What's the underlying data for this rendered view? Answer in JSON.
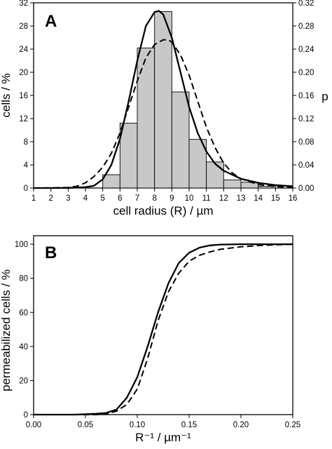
{
  "chart_data": [
    {
      "type": "bar",
      "panel_label": "A",
      "xlabel": "cell radius (R) / µm",
      "ylabel": "cells / %",
      "y2label": "p",
      "xlim": [
        1,
        16
      ],
      "ylim": [
        0,
        32
      ],
      "y2lim": [
        0,
        0.32
      ],
      "xticks": [
        1,
        2,
        3,
        4,
        5,
        6,
        7,
        8,
        9,
        10,
        11,
        12,
        13,
        14,
        15,
        16
      ],
      "yticks": [
        0,
        4,
        8,
        12,
        16,
        20,
        24,
        28,
        32
      ],
      "y2ticks": [
        "0.00",
        "0.04",
        "0.08",
        "0.12",
        "0.16",
        "0.20",
        "0.24",
        "0.28",
        "0.32"
      ],
      "bar_color": "#c8c8c8",
      "bins": [
        {
          "x0": 5,
          "x1": 6,
          "value": 2.3
        },
        {
          "x0": 6,
          "x1": 7,
          "value": 11.2
        },
        {
          "x0": 7,
          "x1": 8,
          "value": 24.2
        },
        {
          "x0": 8,
          "x1": 9,
          "value": 30.5
        },
        {
          "x0": 9,
          "x1": 10,
          "value": 16.6
        },
        {
          "x0": 10,
          "x1": 11,
          "value": 8.4
        },
        {
          "x0": 11,
          "x1": 12,
          "value": 4.5
        },
        {
          "x0": 12,
          "x1": 13,
          "value": 1.4
        },
        {
          "x0": 13,
          "x1": 14,
          "value": 1.0
        },
        {
          "x0": 14,
          "x1": 15,
          "value": 0.3
        }
      ],
      "series": [
        {
          "style": "solid",
          "x": [
            1,
            2,
            3,
            4,
            4.5,
            5,
            5.5,
            6,
            6.5,
            7,
            7.5,
            8,
            8.25,
            8.5,
            9,
            9.5,
            10,
            10.5,
            11,
            11.5,
            12,
            13,
            14,
            15,
            16
          ],
          "y": [
            0,
            0,
            0.02,
            0.15,
            0.4,
            1.5,
            4.0,
            8.5,
            15.0,
            22.0,
            28.0,
            30.4,
            30.6,
            30.0,
            26.0,
            20.0,
            14.0,
            9.5,
            6.3,
            4.2,
            3.0,
            1.6,
            0.9,
            0.5,
            0.3
          ]
        },
        {
          "style": "dashed",
          "x": [
            1,
            2,
            3,
            3.5,
            4,
            4.5,
            5,
            5.5,
            6,
            6.5,
            7,
            7.5,
            8,
            8.5,
            8.8,
            9,
            9.5,
            10,
            10.5,
            11,
            11.5,
            12,
            12.5,
            13,
            14,
            15,
            16
          ],
          "y": [
            0,
            0.02,
            0.1,
            0.3,
            0.9,
            2.0,
            3.6,
            6.0,
            9.5,
            14.0,
            18.5,
            22.5,
            24.8,
            25.6,
            25.6,
            25.2,
            23.0,
            19.5,
            15.0,
            10.5,
            7.0,
            4.3,
            2.6,
            1.6,
            0.6,
            0.25,
            0.1
          ]
        }
      ]
    },
    {
      "type": "line",
      "panel_label": "B",
      "xlabel": "R⁻¹ / µm⁻¹",
      "ylabel": "permeabilized cells / %",
      "xlim": [
        0,
        0.25
      ],
      "ylim": [
        0,
        105
      ],
      "xticks": [
        "0.00",
        "0.05",
        "0.10",
        "0.15",
        "0.20",
        "0.25"
      ],
      "yticks": [
        0,
        20,
        40,
        60,
        80,
        100
      ],
      "series": [
        {
          "style": "solid",
          "x": [
            0,
            0.04,
            0.06,
            0.07,
            0.08,
            0.09,
            0.1,
            0.11,
            0.12,
            0.13,
            0.14,
            0.15,
            0.16,
            0.17,
            0.18,
            0.2,
            0.22,
            0.25
          ],
          "y": [
            0,
            0,
            0.5,
            1,
            3,
            10,
            22,
            40,
            60,
            77,
            89,
            95,
            98,
            99.3,
            99.8,
            100,
            100,
            100
          ]
        },
        {
          "style": "dashed",
          "x": [
            0,
            0.04,
            0.06,
            0.07,
            0.08,
            0.09,
            0.1,
            0.11,
            0.12,
            0.13,
            0.14,
            0.15,
            0.16,
            0.17,
            0.18,
            0.2,
            0.22,
            0.25
          ],
          "y": [
            0,
            0,
            0,
            0.5,
            2,
            6,
            15,
            33,
            55,
            72,
            83,
            90,
            93.5,
            95.5,
            97,
            98.5,
            99.3,
            100
          ]
        }
      ]
    }
  ]
}
